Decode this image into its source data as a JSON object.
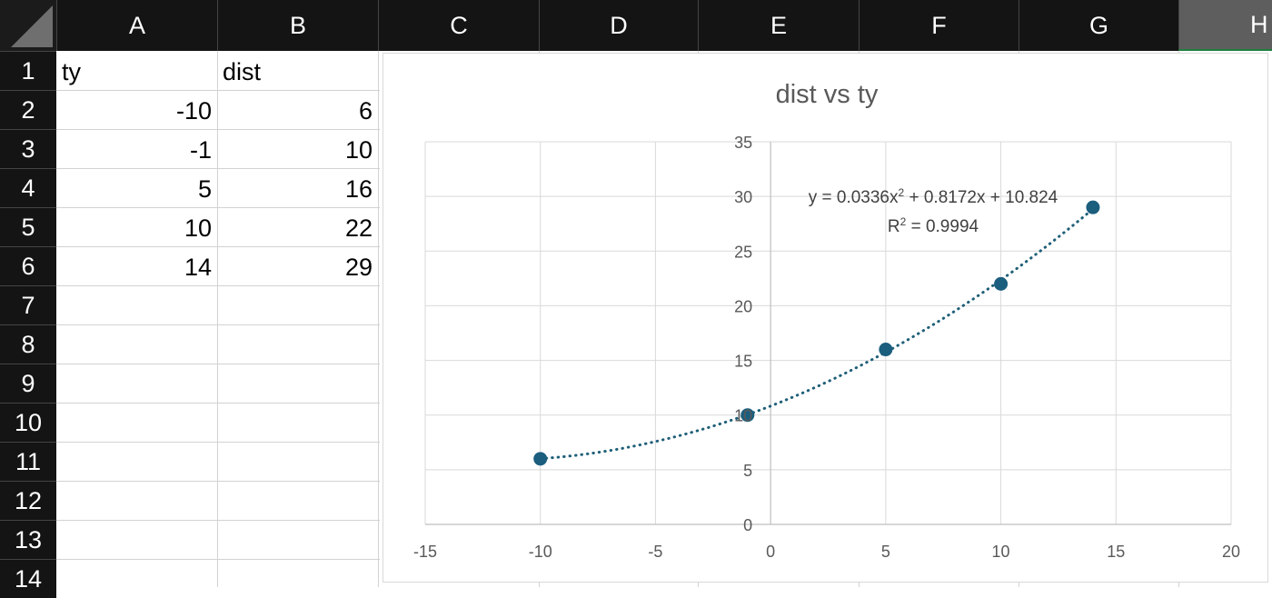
{
  "sheet": {
    "columns": [
      "A",
      "B",
      "C",
      "D",
      "E",
      "F",
      "G",
      "H"
    ],
    "selected_column": "H",
    "rows": [
      "1",
      "2",
      "3",
      "4",
      "5",
      "6",
      "7",
      "8",
      "9",
      "10",
      "11",
      "12",
      "13",
      "14"
    ],
    "cells": {
      "A1": "ty",
      "B1": "dist",
      "A2": "-10",
      "B2": "6",
      "A3": "-1",
      "B3": "10",
      "A4": "5",
      "B4": "16",
      "A5": "10",
      "B5": "22",
      "A6": "14",
      "B6": "29"
    }
  },
  "chart_data": {
    "type": "scatter",
    "title": "dist vs ty",
    "x": [
      -10,
      -1,
      5,
      10,
      14
    ],
    "y": [
      6,
      10,
      16,
      22,
      29
    ],
    "xlim": [
      -15,
      20
    ],
    "ylim": [
      0,
      35
    ],
    "xticks": [
      "-15",
      "-10",
      "-5",
      "0",
      "5",
      "10",
      "15",
      "20"
    ],
    "yticks": [
      "0",
      "5",
      "10",
      "15",
      "20",
      "25",
      "30",
      "35"
    ],
    "grid": true,
    "trendline": {
      "type": "polynomial-2",
      "coefficients": [
        0.0336,
        0.8172,
        10.824
      ],
      "equation_prefix": "y = 0.0336x",
      "equation_suffix": " + 0.8172x + 10.824",
      "r2_prefix": "R",
      "r2_suffix": " = 0.9994",
      "superscript": "2",
      "color": "#1f5f78"
    },
    "marker_color": "#1b5e7e"
  }
}
